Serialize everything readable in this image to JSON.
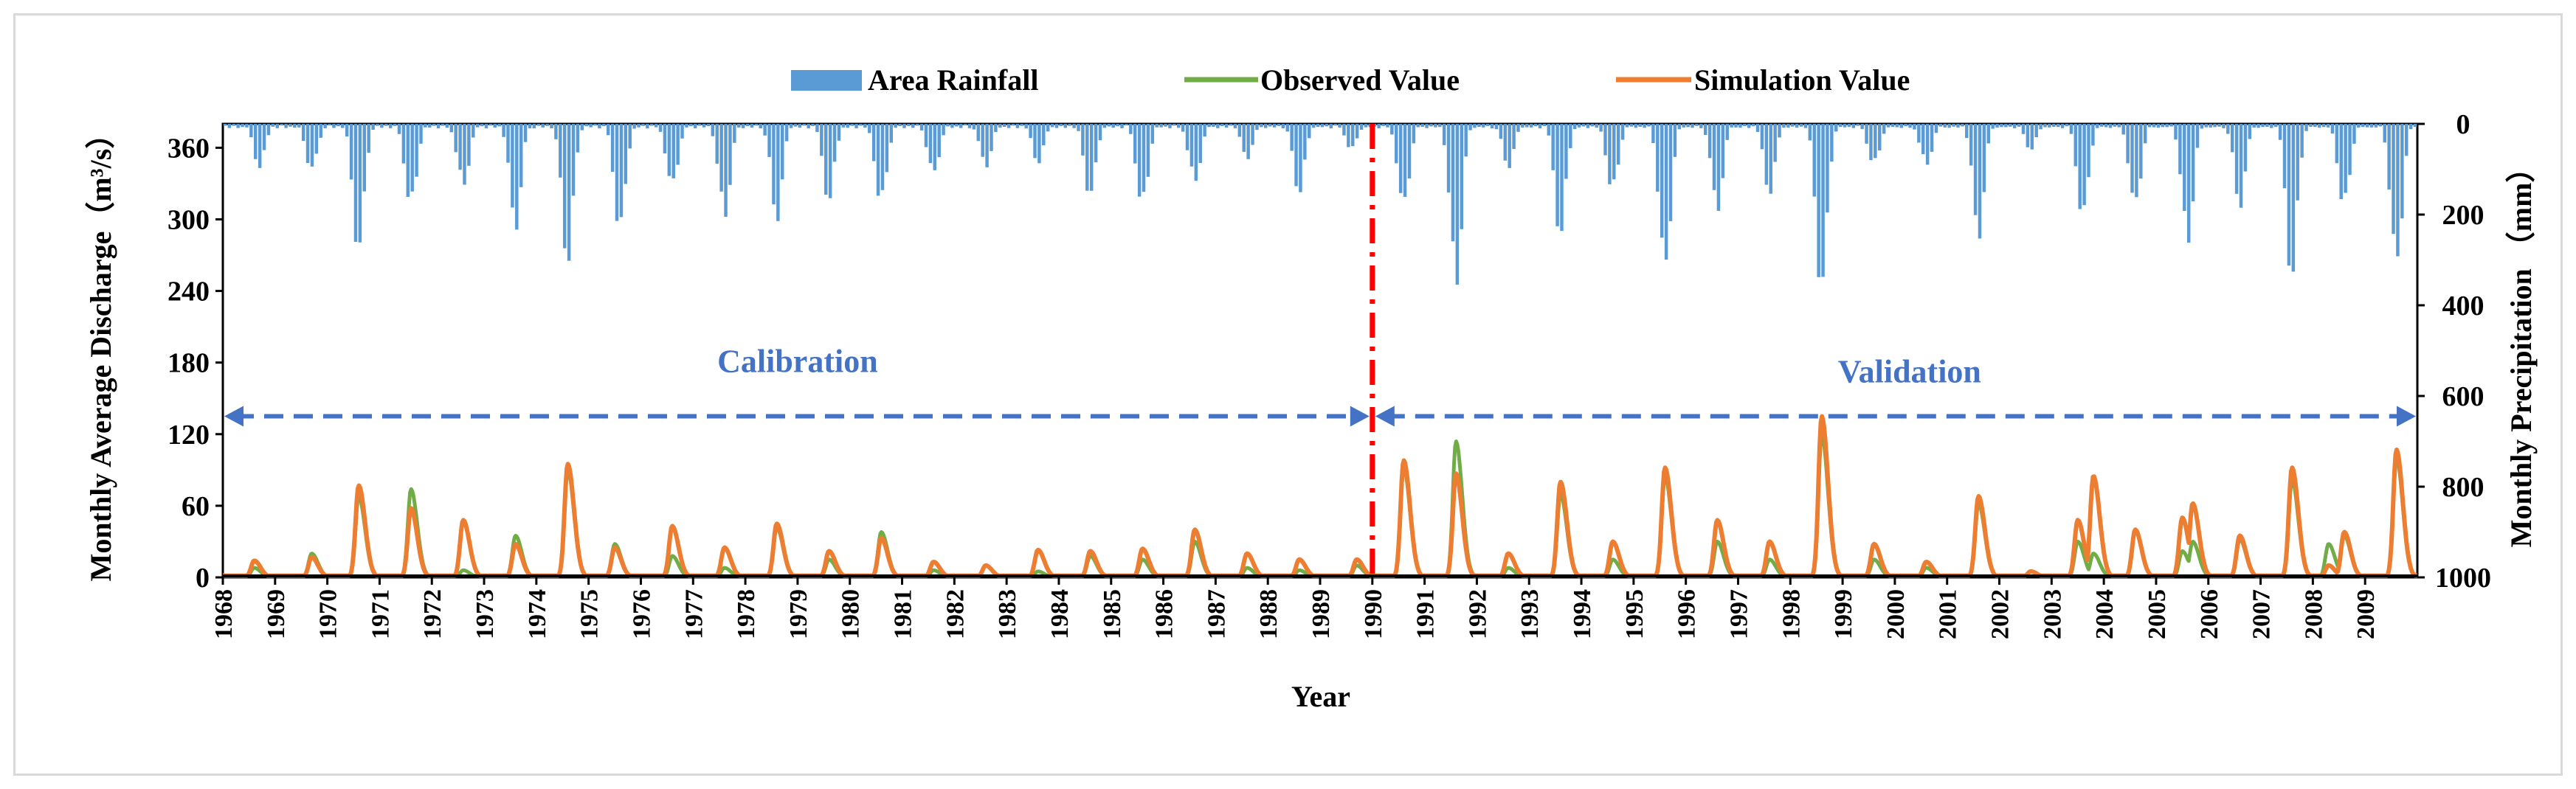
{
  "chart_data": {
    "type": "line+bar",
    "title": "",
    "legend": {
      "placement": "top-center",
      "entries": [
        {
          "label": "Area Rainfall",
          "kind": "bar",
          "color": "#5b9bd5"
        },
        {
          "label": "Observed Value",
          "kind": "line",
          "color": "#70ad47"
        },
        {
          "label": "Simulation Value",
          "kind": "line",
          "color": "#ed7d31"
        }
      ]
    },
    "xlabel": "Year",
    "ylabel_left": "Monthly Average Discharge（m³/s）",
    "ylabel_right": "Monthly Precipitation （mm）",
    "x_range": [
      1968,
      2010
    ],
    "x_ticks": [
      "1968",
      "1969",
      "1970",
      "1971",
      "1972",
      "1973",
      "1974",
      "1975",
      "1976",
      "1977",
      "1978",
      "1979",
      "1980",
      "1981",
      "1982",
      "1983",
      "1984",
      "1985",
      "1986",
      "1987",
      "1988",
      "1989",
      "1990",
      "1991",
      "1992",
      "1993",
      "1994",
      "1995",
      "1996",
      "1997",
      "1998",
      "1999",
      "2000",
      "2001",
      "2002",
      "2003",
      "2004",
      "2005",
      "2006",
      "2007",
      "2008",
      "2009"
    ],
    "ylim_left": [
      0,
      380
    ],
    "y_ticks_left": [
      "0",
      "60",
      "120",
      "180",
      "240",
      "300",
      "360"
    ],
    "ylim_right_inverted": [
      0,
      1000
    ],
    "y_ticks_right": [
      "0",
      "200",
      "400",
      "600",
      "800",
      "1000"
    ],
    "split_year": 1990,
    "annotations": {
      "calibration": "Calibration",
      "validation": "Validation",
      "arrow_level": 135
    },
    "discharge_peaks": [
      {
        "t": 1968.6,
        "obs": 8,
        "sim": 14
      },
      {
        "t": 1969.7,
        "obs": 20,
        "sim": 17
      },
      {
        "t": 1970.6,
        "obs": 68,
        "sim": 77
      },
      {
        "t": 1971.6,
        "obs": 74,
        "sim": 58
      },
      {
        "t": 1972.6,
        "obs": 6,
        "sim": 48
      },
      {
        "t": 1973.6,
        "obs": 35,
        "sim": 28
      },
      {
        "t": 1974.6,
        "obs": 90,
        "sim": 95
      },
      {
        "t": 1975.5,
        "obs": 28,
        "sim": 25
      },
      {
        "t": 1976.6,
        "obs": 18,
        "sim": 43
      },
      {
        "t": 1977.6,
        "obs": 8,
        "sim": 25
      },
      {
        "t": 1978.6,
        "obs": 42,
        "sim": 45
      },
      {
        "t": 1979.6,
        "obs": 15,
        "sim": 22
      },
      {
        "t": 1980.6,
        "obs": 38,
        "sim": 33
      },
      {
        "t": 1981.6,
        "obs": 6,
        "sim": 13
      },
      {
        "t": 1982.6,
        "obs": 10,
        "sim": 10
      },
      {
        "t": 1983.6,
        "obs": 5,
        "sim": 23
      },
      {
        "t": 1984.6,
        "obs": 18,
        "sim": 22
      },
      {
        "t": 1985.6,
        "obs": 15,
        "sim": 24
      },
      {
        "t": 1986.6,
        "obs": 30,
        "sim": 40
      },
      {
        "t": 1987.6,
        "obs": 8,
        "sim": 20
      },
      {
        "t": 1988.6,
        "obs": 6,
        "sim": 15
      },
      {
        "t": 1989.7,
        "obs": 10,
        "sim": 15
      },
      {
        "t": 1990.6,
        "obs": 92,
        "sim": 98
      },
      {
        "t": 1991.6,
        "obs": 114,
        "sim": 87
      },
      {
        "t": 1992.6,
        "obs": 8,
        "sim": 20
      },
      {
        "t": 1993.6,
        "obs": 70,
        "sim": 80
      },
      {
        "t": 1994.6,
        "obs": 15,
        "sim": 30
      },
      {
        "t": 1995.6,
        "obs": 85,
        "sim": 92
      },
      {
        "t": 1996.6,
        "obs": 30,
        "sim": 48
      },
      {
        "t": 1997.6,
        "obs": 15,
        "sim": 30
      },
      {
        "t": 1998.6,
        "obs": 120,
        "sim": 135
      },
      {
        "t": 1999.6,
        "obs": 15,
        "sim": 28
      },
      {
        "t": 2000.6,
        "obs": 8,
        "sim": 13
      },
      {
        "t": 2001.6,
        "obs": 62,
        "sim": 68
      },
      {
        "t": 2002.6,
        "obs": 5,
        "sim": 5
      },
      {
        "t": 2003.5,
        "obs": 30,
        "sim": 48
      },
      {
        "t": 2003.8,
        "obs": 20,
        "sim": 85
      },
      {
        "t": 2004.6,
        "obs": 40,
        "sim": 40
      },
      {
        "t": 2005.5,
        "obs": 22,
        "sim": 50
      },
      {
        "t": 2005.7,
        "obs": 30,
        "sim": 62
      },
      {
        "t": 2006.6,
        "obs": 32,
        "sim": 35
      },
      {
        "t": 2007.6,
        "obs": 82,
        "sim": 92
      },
      {
        "t": 2008.3,
        "obs": 28,
        "sim": 10
      },
      {
        "t": 2008.6,
        "obs": 35,
        "sim": 38
      },
      {
        "t": 2009.6,
        "obs": 100,
        "sim": 107
      }
    ],
    "rainfall_peaks": [
      {
        "t": 1968.7,
        "mm": 100
      },
      {
        "t": 1969.7,
        "mm": 110
      },
      {
        "t": 1970.6,
        "mm": 300
      },
      {
        "t": 1971.6,
        "mm": 200
      },
      {
        "t": 1972.6,
        "mm": 150
      },
      {
        "t": 1973.6,
        "mm": 240
      },
      {
        "t": 1974.6,
        "mm": 320
      },
      {
        "t": 1975.6,
        "mm": 250
      },
      {
        "t": 1976.6,
        "mm": 150
      },
      {
        "t": 1977.6,
        "mm": 220
      },
      {
        "t": 1978.6,
        "mm": 220
      },
      {
        "t": 1979.6,
        "mm": 180
      },
      {
        "t": 1980.6,
        "mm": 190
      },
      {
        "t": 1981.6,
        "mm": 120
      },
      {
        "t": 1982.6,
        "mm": 100
      },
      {
        "t": 1983.6,
        "mm": 90
      },
      {
        "t": 1984.6,
        "mm": 170
      },
      {
        "t": 1985.6,
        "mm": 200
      },
      {
        "t": 1986.6,
        "mm": 140
      },
      {
        "t": 1987.6,
        "mm": 80
      },
      {
        "t": 1988.6,
        "mm": 160
      },
      {
        "t": 1989.6,
        "mm": 60
      },
      {
        "t": 1990.6,
        "mm": 200
      },
      {
        "t": 1991.6,
        "mm": 380
      },
      {
        "t": 1992.6,
        "mm": 100
      },
      {
        "t": 1993.6,
        "mm": 260
      },
      {
        "t": 1994.6,
        "mm": 160
      },
      {
        "t": 1995.6,
        "mm": 350
      },
      {
        "t": 1996.6,
        "mm": 200
      },
      {
        "t": 1997.6,
        "mm": 160
      },
      {
        "t": 1998.6,
        "mm": 390
      },
      {
        "t": 1999.6,
        "mm": 100
      },
      {
        "t": 2000.6,
        "mm": 100
      },
      {
        "t": 2001.6,
        "mm": 260
      },
      {
        "t": 2002.6,
        "mm": 60
      },
      {
        "t": 2003.6,
        "mm": 220
      },
      {
        "t": 2004.6,
        "mm": 200
      },
      {
        "t": 2005.6,
        "mm": 280
      },
      {
        "t": 2006.6,
        "mm": 190
      },
      {
        "t": 2007.6,
        "mm": 360
      },
      {
        "t": 2008.6,
        "mm": 200
      },
      {
        "t": 2009.6,
        "mm": 340
      }
    ]
  }
}
